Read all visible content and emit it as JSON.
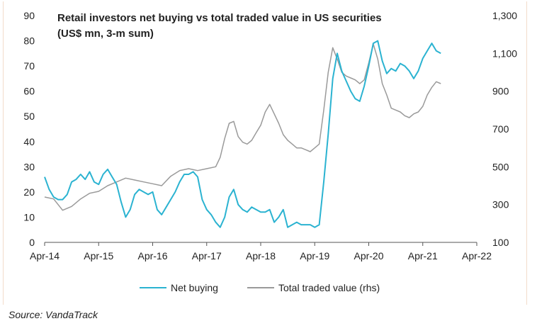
{
  "source": "Source: VandaTrack",
  "colors": {
    "net_buying": "#2bb3d1",
    "total_traded": "#9a9a9a",
    "axis": "#555555",
    "text": "#222222"
  },
  "chart_data": {
    "type": "line",
    "title": "Retail investors net buying vs total traded value in US securities",
    "subtitle": "(US$ mn, 3-m sum)",
    "x_ticks": [
      "Apr-14",
      "Apr-15",
      "Apr-16",
      "Apr-17",
      "Apr-18",
      "Apr-19",
      "Apr-20",
      "Apr-21",
      "Apr-22"
    ],
    "x_range": [
      0,
      96
    ],
    "y_left": {
      "range": [
        0,
        90
      ],
      "ticks": [
        "0",
        "10",
        "20",
        "30",
        "40",
        "50",
        "60",
        "70",
        "80",
        "90"
      ]
    },
    "y_right": {
      "range": [
        100,
        1300
      ],
      "ticks": [
        "100",
        "300",
        "500",
        "700",
        "900",
        "1,100",
        "1,300"
      ]
    },
    "legend": "bottom-center",
    "series": [
      {
        "name": "Net buying",
        "axis": "left",
        "points": [
          [
            0,
            26
          ],
          [
            1,
            21
          ],
          [
            2,
            18
          ],
          [
            3,
            17
          ],
          [
            4,
            17
          ],
          [
            5,
            19
          ],
          [
            6,
            24
          ],
          [
            7,
            25
          ],
          [
            8,
            27
          ],
          [
            9,
            25
          ],
          [
            10,
            28
          ],
          [
            11,
            24
          ],
          [
            12,
            23
          ],
          [
            13,
            27
          ],
          [
            14,
            29
          ],
          [
            15,
            26
          ],
          [
            16,
            23
          ],
          [
            17,
            16
          ],
          [
            18,
            10
          ],
          [
            19,
            13
          ],
          [
            20,
            19
          ],
          [
            21,
            21
          ],
          [
            22,
            20
          ],
          [
            23,
            19
          ],
          [
            24,
            20
          ],
          [
            25,
            13
          ],
          [
            26,
            11
          ],
          [
            27,
            14
          ],
          [
            28,
            17
          ],
          [
            29,
            20
          ],
          [
            30,
            24
          ],
          [
            31,
            27
          ],
          [
            32,
            27
          ],
          [
            33,
            28
          ],
          [
            34,
            26
          ],
          [
            35,
            17
          ],
          [
            36,
            13
          ],
          [
            37,
            11
          ],
          [
            38,
            8
          ],
          [
            39,
            6
          ],
          [
            40,
            10
          ],
          [
            41,
            18
          ],
          [
            42,
            21
          ],
          [
            43,
            15
          ],
          [
            44,
            13
          ],
          [
            45,
            12
          ],
          [
            46,
            14
          ],
          [
            47,
            13
          ],
          [
            48,
            12
          ],
          [
            49,
            12
          ],
          [
            50,
            13
          ],
          [
            51,
            8
          ],
          [
            52,
            10
          ],
          [
            53,
            13
          ],
          [
            54,
            6
          ],
          [
            55,
            7
          ],
          [
            56,
            8
          ],
          [
            57,
            7
          ],
          [
            58,
            7
          ],
          [
            59,
            7
          ],
          [
            60,
            6
          ],
          [
            61,
            7
          ],
          [
            62,
            24
          ],
          [
            63,
            43
          ],
          [
            64,
            65
          ],
          [
            65,
            75
          ],
          [
            66,
            68
          ],
          [
            67,
            64
          ],
          [
            68,
            60
          ],
          [
            69,
            57
          ],
          [
            70,
            56
          ],
          [
            71,
            62
          ],
          [
            72,
            70
          ],
          [
            73,
            79
          ],
          [
            74,
            80
          ],
          [
            75,
            72
          ],
          [
            76,
            67
          ],
          [
            77,
            69
          ],
          [
            78,
            68
          ],
          [
            79,
            71
          ],
          [
            80,
            70
          ],
          [
            81,
            68
          ],
          [
            82,
            65
          ],
          [
            83,
            68
          ],
          [
            84,
            73
          ],
          [
            85,
            76
          ],
          [
            86,
            79
          ],
          [
            87,
            76
          ],
          [
            88,
            75
          ]
        ]
      },
      {
        "name": "Total traded value (rhs)",
        "axis": "right",
        "points": [
          [
            0,
            340
          ],
          [
            2,
            330
          ],
          [
            4,
            270
          ],
          [
            6,
            290
          ],
          [
            8,
            330
          ],
          [
            10,
            360
          ],
          [
            12,
            370
          ],
          [
            14,
            400
          ],
          [
            16,
            420
          ],
          [
            18,
            440
          ],
          [
            20,
            430
          ],
          [
            22,
            420
          ],
          [
            24,
            410
          ],
          [
            26,
            400
          ],
          [
            28,
            450
          ],
          [
            30,
            480
          ],
          [
            32,
            490
          ],
          [
            34,
            480
          ],
          [
            36,
            490
          ],
          [
            38,
            500
          ],
          [
            39,
            550
          ],
          [
            40,
            650
          ],
          [
            41,
            730
          ],
          [
            42,
            740
          ],
          [
            43,
            660
          ],
          [
            44,
            630
          ],
          [
            45,
            620
          ],
          [
            46,
            640
          ],
          [
            47,
            680
          ],
          [
            48,
            720
          ],
          [
            49,
            790
          ],
          [
            50,
            830
          ],
          [
            51,
            780
          ],
          [
            52,
            730
          ],
          [
            53,
            670
          ],
          [
            54,
            640
          ],
          [
            55,
            620
          ],
          [
            56,
            600
          ],
          [
            57,
            600
          ],
          [
            58,
            590
          ],
          [
            59,
            580
          ],
          [
            60,
            600
          ],
          [
            61,
            620
          ],
          [
            62,
            800
          ],
          [
            63,
            1000
          ],
          [
            64,
            1130
          ],
          [
            65,
            1070
          ],
          [
            66,
            1000
          ],
          [
            67,
            980
          ],
          [
            68,
            970
          ],
          [
            69,
            960
          ],
          [
            70,
            940
          ],
          [
            71,
            960
          ],
          [
            72,
            1050
          ],
          [
            73,
            1150
          ],
          [
            74,
            1070
          ],
          [
            75,
            940
          ],
          [
            76,
            880
          ],
          [
            77,
            810
          ],
          [
            78,
            800
          ],
          [
            79,
            790
          ],
          [
            80,
            770
          ],
          [
            81,
            760
          ],
          [
            82,
            780
          ],
          [
            83,
            790
          ],
          [
            84,
            820
          ],
          [
            85,
            880
          ],
          [
            86,
            920
          ],
          [
            87,
            950
          ],
          [
            88,
            940
          ]
        ]
      }
    ]
  }
}
